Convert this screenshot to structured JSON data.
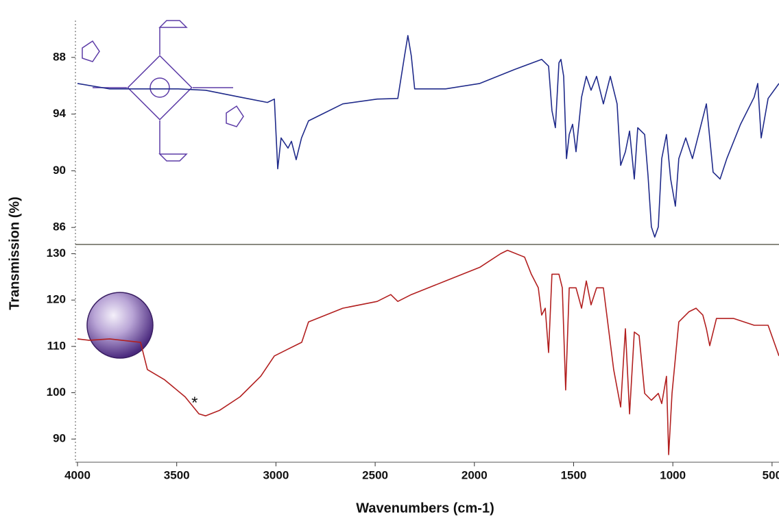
{
  "chart_data": [
    {
      "type": "line",
      "ylabel": "Transmission (%)",
      "xlim": [
        4000,
        465
      ],
      "ylim": [
        81.4,
        89.3
      ],
      "yticks": [
        88,
        {
          "value": 86,
          "label": "94"
        },
        {
          "value": 84,
          "label": "90"
        },
        {
          "value": 82,
          "label": "86"
        }
      ],
      "series": [
        {
          "color": "#1f2a8a",
          "x": [
            4000,
            3838,
            3700,
            3492,
            3354,
            3181,
            3043,
            3008,
            2991,
            2974,
            2939,
            2922,
            2898,
            2871,
            2836,
            2767,
            2663,
            2490,
            2386,
            2352,
            2335,
            2318,
            2301,
            2145,
            1973,
            1799,
            1661,
            1626,
            1609,
            1592,
            1574,
            1564,
            1550,
            1536,
            1522,
            1505,
            1488,
            1460,
            1436,
            1412,
            1384,
            1350,
            1315,
            1281,
            1263,
            1239,
            1218,
            1194,
            1177,
            1142,
            1125,
            1108,
            1091,
            1073,
            1056,
            1032,
            1011,
            987,
            970,
            935,
            901,
            866,
            831,
            797,
            762,
            728,
            659,
            607,
            590,
            572,
            555,
            520,
            465
          ],
          "values": [
            87.08,
            86.89,
            86.89,
            86.89,
            86.84,
            86.6,
            86.41,
            86.53,
            84.07,
            85.16,
            84.8,
            85.04,
            84.39,
            85.16,
            85.76,
            86.0,
            86.36,
            86.53,
            86.55,
            88.05,
            88.77,
            88.05,
            86.89,
            86.89,
            87.08,
            87.57,
            87.93,
            87.69,
            86.12,
            85.52,
            87.81,
            87.93,
            87.33,
            84.43,
            85.28,
            85.64,
            84.67,
            86.6,
            87.33,
            86.84,
            87.33,
            86.36,
            87.33,
            86.36,
            84.19,
            84.67,
            85.4,
            83.71,
            85.52,
            85.28,
            83.83,
            82.02,
            81.66,
            82.02,
            84.43,
            85.28,
            83.71,
            82.75,
            84.43,
            85.16,
            84.43,
            85.4,
            86.36,
            83.95,
            83.71,
            84.43,
            85.64,
            86.36,
            86.6,
            87.08,
            85.16,
            86.55,
            87.08
          ]
        }
      ]
    },
    {
      "type": "line",
      "xlabel": "Wavenumbers (cm-1)",
      "xlim": [
        4000,
        465
      ],
      "xticks": [
        4000,
        3500,
        3000,
        2500,
        2000,
        1500,
        1000,
        500
      ],
      "ylim": [
        85,
        132
      ],
      "yticks": [
        130,
        120,
        110,
        100,
        90
      ],
      "annotations": [
        {
          "text": "*",
          "x": 3410,
          "y": 97.6
        }
      ],
      "series": [
        {
          "color": "#b21f1f",
          "x": [
            4000,
            3941,
            3838,
            3682,
            3665,
            3648,
            3561,
            3458,
            3388,
            3354,
            3285,
            3181,
            3077,
            3008,
            2939,
            2870,
            2836,
            2663,
            2490,
            2421,
            2386,
            2318,
            2145,
            1973,
            1868,
            1833,
            1747,
            1713,
            1678,
            1661,
            1643,
            1626,
            1609,
            1574,
            1557,
            1540,
            1522,
            1488,
            1460,
            1436,
            1412,
            1384,
            1350,
            1298,
            1263,
            1239,
            1218,
            1194,
            1170,
            1142,
            1108,
            1073,
            1056,
            1032,
            1021,
            1004,
            970,
            918,
            883,
            849,
            831,
            814,
            780,
            693,
            590,
            520,
            465
          ],
          "values": [
            111.62,
            111.32,
            111.62,
            110.88,
            107.94,
            105.0,
            102.79,
            99.12,
            95.44,
            95.0,
            96.18,
            99.12,
            103.53,
            107.94,
            109.41,
            110.88,
            115.29,
            118.24,
            119.71,
            121.18,
            119.71,
            121.18,
            124.12,
            127.06,
            130.0,
            130.74,
            129.26,
            125.59,
            122.65,
            116.76,
            118.24,
            108.68,
            125.59,
            125.59,
            122.65,
            100.59,
            122.65,
            122.65,
            118.24,
            124.12,
            118.97,
            122.65,
            122.65,
            105.0,
            96.91,
            113.82,
            95.44,
            113.09,
            112.35,
            99.85,
            98.38,
            99.85,
            97.65,
            103.53,
            86.62,
            99.85,
            115.29,
            117.5,
            118.24,
            116.76,
            113.82,
            110.15,
            116.03,
            116.03,
            114.56,
            114.56,
            107.94
          ]
        }
      ]
    }
  ]
}
